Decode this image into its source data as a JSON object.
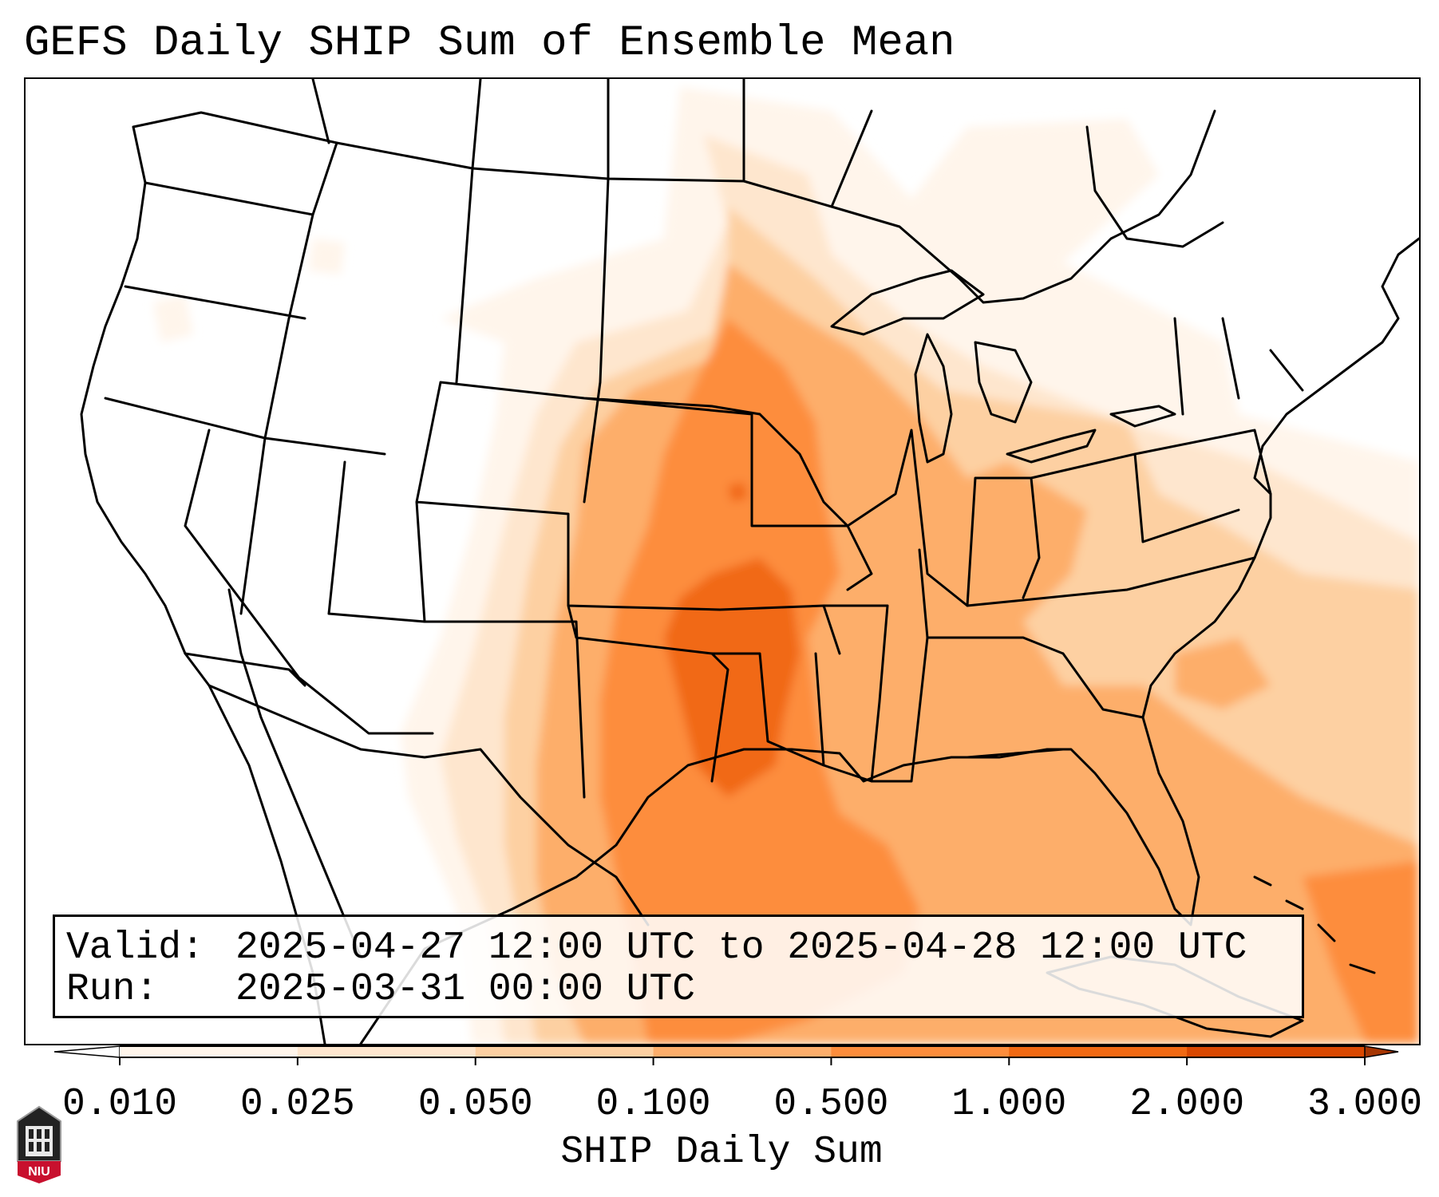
{
  "title": "GEFS Daily SHIP Sum of Ensemble Mean",
  "map": {
    "region": "CONUS",
    "basemap_layers": [
      "coastlines",
      "state-borders",
      "country-borders",
      "canada-provinces"
    ],
    "field": "SHIP daily sum (ensemble mean)"
  },
  "info": {
    "valid_label": "Valid:",
    "valid_value": "2025-04-27 12:00 UTC to 2025-04-28 12:00 UTC",
    "run_label": "Run:",
    "run_value": "2025-03-31 00:00 UTC"
  },
  "colorbar": {
    "label": "SHIP Daily Sum",
    "ticks": [
      "0.010",
      "0.025",
      "0.050",
      "0.100",
      "0.500",
      "1.000",
      "2.000",
      "3.000"
    ],
    "colors": [
      "#fff5eb",
      "#fee6ce",
      "#fdd0a2",
      "#fdae6b",
      "#fd8d3c",
      "#f16913",
      "#d94801"
    ],
    "under_color": "#ffffff",
    "over_color": "#a63603",
    "extend": "both"
  },
  "logo": {
    "text": "NIU",
    "color": "#c8102e"
  }
}
